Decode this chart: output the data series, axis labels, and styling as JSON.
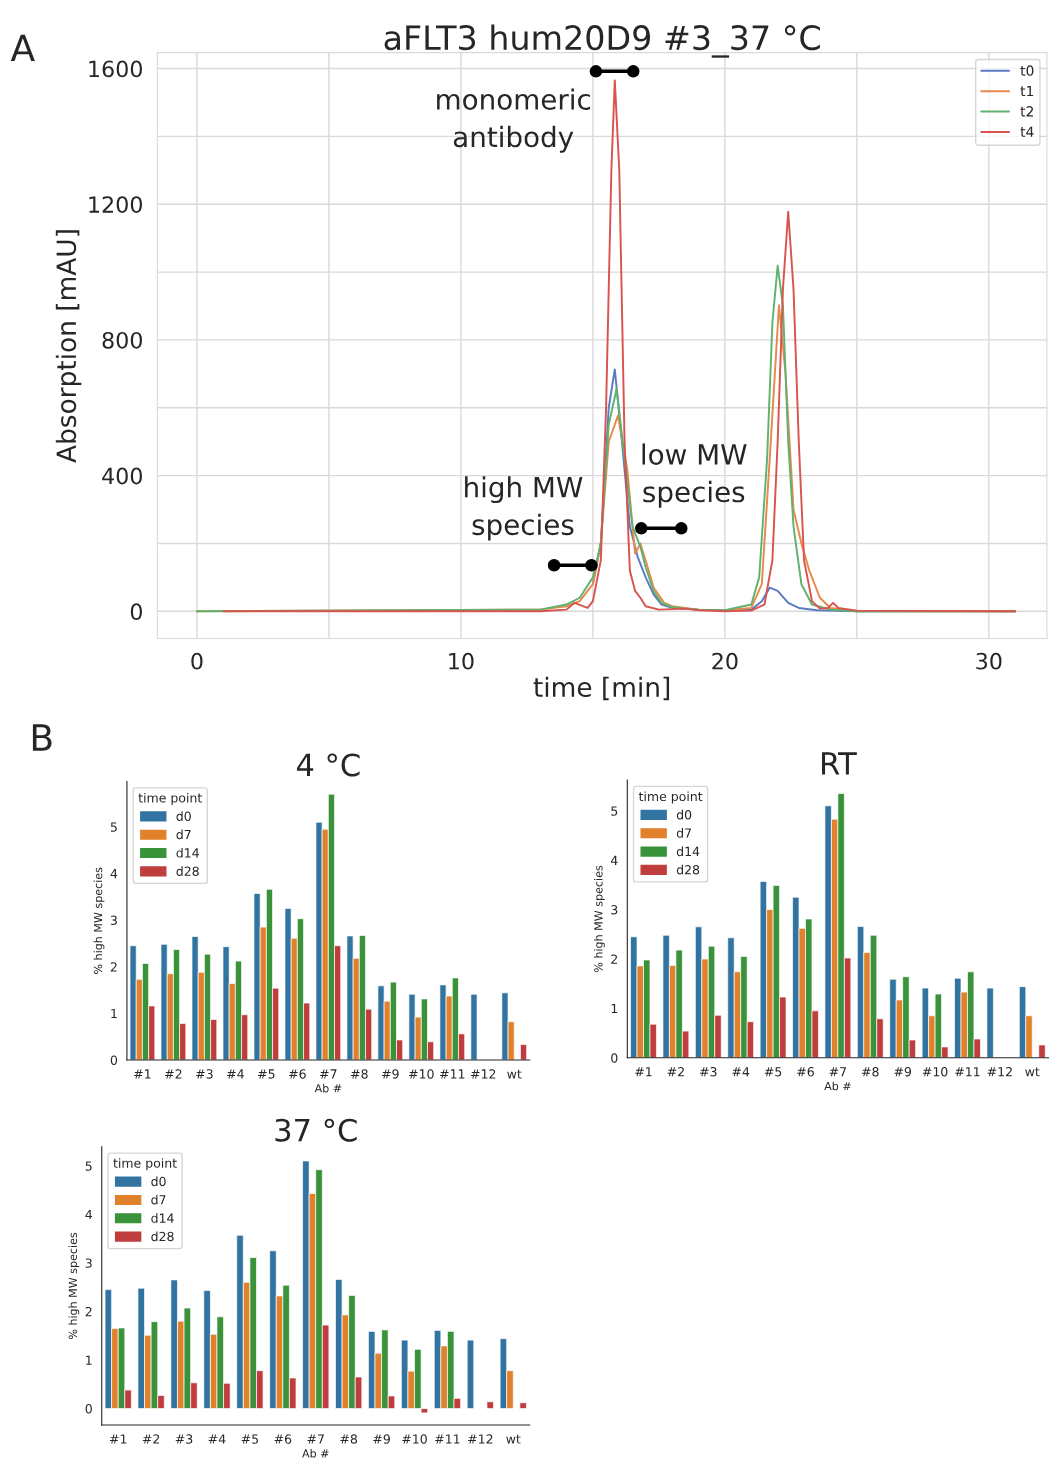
{
  "chart_data": [
    {
      "type": "line",
      "title": "aFLT3 hum20D9 #3_37 °C",
      "xlabel": "time [min]",
      "ylabel": "Absorption [mAU]",
      "xlim": [
        -1.5,
        32.2
      ],
      "ylim": [
        -80,
        1647
      ],
      "xticks": [
        0,
        {
          "value": 5,
          "label": null
        },
        10,
        {
          "value": 15,
          "label": null
        },
        20,
        {
          "value": 25,
          "label": null
        },
        30
      ],
      "yticks": [
        0,
        {
          "value": 200,
          "label": null
        },
        400,
        {
          "value": 600,
          "label": null
        },
        800,
        {
          "value": 1000,
          "label": null
        },
        1200,
        {
          "value": 1400,
          "label": null
        },
        1600
      ],
      "grid": true,
      "legend": "top right",
      "annotations": [
        "A",
        "monomeric\nantibody",
        "high MW\nspecies",
        "low MW\nspecies"
      ],
      "series": [
        {
          "name": "t0",
          "color": "#5a7bc0",
          "x": [
            15,
            15.3,
            15.6,
            15.83,
            16.1,
            16.4,
            16.7,
            17.0,
            17.3,
            17.6,
            18,
            18.5,
            19,
            20,
            21,
            21.4,
            21.7,
            22.0,
            22.4,
            22.8,
            23.5,
            25,
            31
          ],
          "values": [
            80,
            200,
            600,
            713,
            500,
            250,
            160,
            100,
            50,
            20,
            10,
            8,
            5,
            3,
            5,
            30,
            70,
            60,
            25,
            10,
            3,
            0,
            0
          ]
        },
        {
          "name": "t1",
          "color": "#e8894b",
          "x": [
            0,
            13,
            14,
            14.5,
            15,
            15.3,
            15.6,
            15.95,
            16.3,
            16.6,
            16.8,
            17.0,
            17.3,
            17.7,
            18,
            19,
            20,
            21,
            21.4,
            21.7,
            22.05,
            22.3,
            22.6,
            22.9,
            23.2,
            23.6,
            24,
            25,
            31
          ],
          "values": [
            0,
            5,
            15,
            30,
            80,
            200,
            500,
            577,
            420,
            170,
            200,
            150,
            70,
            25,
            15,
            5,
            3,
            10,
            80,
            450,
            902,
            700,
            300,
            200,
            120,
            40,
            10,
            0,
            0
          ]
        },
        {
          "name": "t2",
          "color": "#5fb26f",
          "x": [
            0,
            13,
            14,
            14.5,
            15,
            15.3,
            15.6,
            15.9,
            16.2,
            16.5,
            16.8,
            17.0,
            17.3,
            17.6,
            18,
            18.5,
            19,
            20,
            21,
            21.3,
            21.6,
            21.8,
            22.0,
            22.2,
            22.4,
            22.6,
            22.9,
            23.3,
            24,
            25,
            31
          ],
          "values": [
            0,
            5,
            20,
            40,
            100,
            200,
            550,
            657,
            450,
            250,
            190,
            130,
            60,
            25,
            12,
            8,
            5,
            3,
            20,
            100,
            450,
            850,
            1019,
            900,
            500,
            250,
            80,
            20,
            5,
            0,
            0
          ]
        },
        {
          "name": "t4",
          "color": "#d9534f",
          "x": [
            1,
            13,
            14.0,
            14.3,
            14.8,
            15.0,
            15.3,
            15.5,
            15.7,
            15.83,
            16.0,
            16.2,
            16.4,
            16.6,
            16.8,
            17.0,
            17.5,
            18.5,
            19,
            20,
            21,
            21.5,
            21.8,
            22.0,
            22.2,
            22.4,
            22.6,
            22.8,
            23.0,
            23.3,
            23.6,
            23.9,
            24.1,
            24.3,
            25,
            31
          ],
          "values": [
            0,
            0,
            5,
            25,
            10,
            30,
            150,
            600,
            1300,
            1565,
            1300,
            500,
            120,
            60,
            40,
            15,
            5,
            8,
            3,
            0,
            2,
            20,
            150,
            500,
            950,
            1178,
            950,
            500,
            150,
            30,
            8,
            10,
            25,
            10,
            2,
            0
          ]
        }
      ]
    },
    {
      "type": "bar",
      "title": "4 °C",
      "xlabel": "Ab #",
      "ylabel": "% high MW species",
      "legend_title": "time point",
      "legend": "top left",
      "categories": [
        "#1",
        "#2",
        "#3",
        "#4",
        "#5",
        "#6",
        "#7",
        "#8",
        "#9",
        "#10",
        "#11",
        "#12",
        "wt"
      ],
      "ylim": [
        0,
        5.97
      ],
      "yticks": [
        0,
        1,
        2,
        3,
        4,
        5
      ],
      "annotations": [
        "B"
      ],
      "series": [
        {
          "name": "d0",
          "color": "#3274a1",
          "values": [
            2.45,
            2.48,
            2.65,
            2.43,
            3.57,
            3.25,
            5.1,
            2.66,
            1.59,
            1.41,
            1.61,
            1.41,
            1.44
          ]
        },
        {
          "name": "d7",
          "color": "#e1812c",
          "values": [
            1.73,
            1.85,
            1.88,
            1.64,
            2.85,
            2.61,
            4.95,
            2.18,
            1.26,
            0.92,
            1.37,
            null,
            0.82
          ]
        },
        {
          "name": "d14",
          "color": "#3a923a",
          "values": [
            2.07,
            2.37,
            2.27,
            2.12,
            3.66,
            3.03,
            5.7,
            2.67,
            1.67,
            1.31,
            1.76,
            null,
            null
          ]
        },
        {
          "name": "d28",
          "color": "#c03d3e",
          "values": [
            1.16,
            0.78,
            0.87,
            0.97,
            1.54,
            1.22,
            2.45,
            1.09,
            0.43,
            0.39,
            0.56,
            null,
            0.33
          ]
        }
      ]
    },
    {
      "type": "bar",
      "title": "RT",
      "xlabel": "Ab #",
      "ylabel": "% high MW species",
      "legend_title": "time point",
      "legend": "top left",
      "categories": [
        "#1",
        "#2",
        "#3",
        "#4",
        "#5",
        "#6",
        "#7",
        "#8",
        "#9",
        "#10",
        "#11",
        "#12",
        "wt"
      ],
      "ylim": [
        0,
        5.62
      ],
      "yticks": [
        0,
        1,
        2,
        3,
        4,
        5
      ],
      "series": [
        {
          "name": "d0",
          "color": "#3274a1",
          "values": [
            2.45,
            2.48,
            2.65,
            2.43,
            3.57,
            3.25,
            5.1,
            2.66,
            1.59,
            1.41,
            1.61,
            1.41,
            1.44
          ]
        },
        {
          "name": "d7",
          "color": "#e1812c",
          "values": [
            1.86,
            1.87,
            2.0,
            1.74,
            3.0,
            2.62,
            4.83,
            2.13,
            1.17,
            0.85,
            1.33,
            null,
            0.85
          ]
        },
        {
          "name": "d14",
          "color": "#3a923a",
          "values": [
            1.98,
            2.18,
            2.26,
            2.05,
            3.49,
            2.81,
            5.35,
            2.48,
            1.64,
            1.29,
            1.74,
            null,
            null
          ]
        },
        {
          "name": "d28",
          "color": "#c03d3e",
          "values": [
            0.68,
            0.54,
            0.86,
            0.73,
            1.23,
            0.95,
            2.02,
            0.79,
            0.36,
            0.22,
            0.38,
            null,
            0.26
          ]
        }
      ]
    },
    {
      "type": "bar",
      "title": "37 °C",
      "xlabel": "Ab #",
      "ylabel": "% high MW species",
      "legend_title": "time point",
      "legend": "top left",
      "categories": [
        "#1",
        "#2",
        "#3",
        "#4",
        "#5",
        "#6",
        "#7",
        "#8",
        "#9",
        "#10",
        "#11",
        "#12",
        "wt"
      ],
      "ylim": [
        -0.34,
        5.39
      ],
      "yticks": [
        0,
        1,
        2,
        3,
        4,
        5
      ],
      "series": [
        {
          "name": "d0",
          "color": "#3274a1",
          "values": [
            2.45,
            2.48,
            2.65,
            2.43,
            3.57,
            3.25,
            5.1,
            2.66,
            1.59,
            1.41,
            1.61,
            1.41,
            1.44
          ]
        },
        {
          "name": "d7",
          "color": "#e1812c",
          "values": [
            1.65,
            1.51,
            1.8,
            1.53,
            2.6,
            2.32,
            4.43,
            1.93,
            1.14,
            0.77,
            1.29,
            null,
            0.78
          ]
        },
        {
          "name": "d14",
          "color": "#3a923a",
          "values": [
            1.66,
            1.79,
            2.07,
            1.89,
            3.11,
            2.54,
            4.92,
            2.33,
            1.62,
            1.22,
            1.59,
            null,
            null
          ]
        },
        {
          "name": "d28",
          "color": "#c03d3e",
          "values": [
            0.38,
            0.27,
            0.53,
            0.52,
            0.78,
            0.63,
            1.72,
            0.65,
            0.26,
            -0.09,
            0.21,
            0.14,
            0.12
          ]
        }
      ]
    }
  ]
}
